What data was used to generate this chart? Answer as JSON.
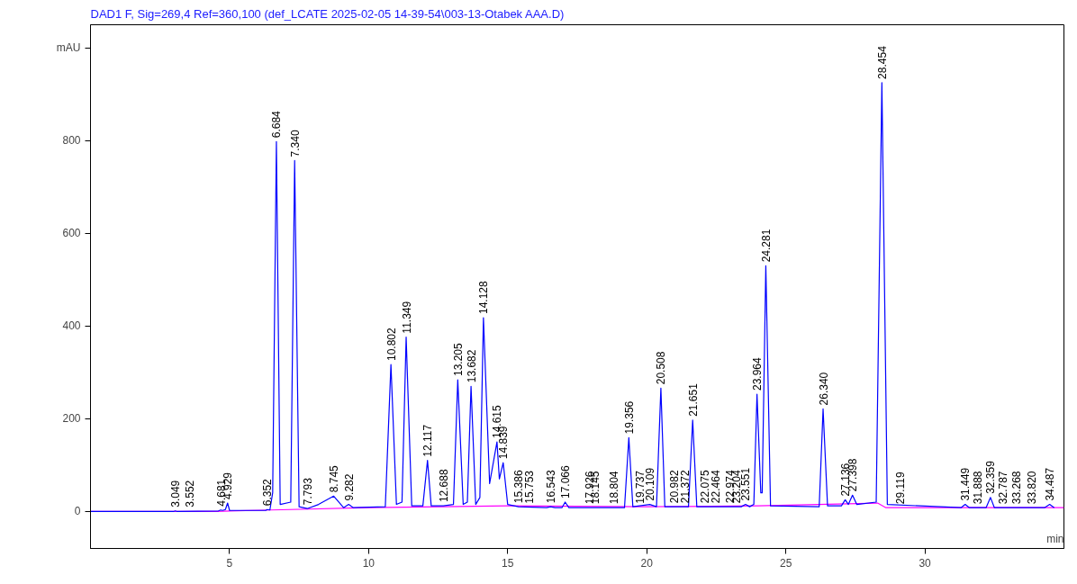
{
  "chart_data": {
    "type": "line",
    "title": "DAD1 F, Sig=269,4 Ref=360,100 (def_LCATE 2025-02-05 14-39-54\\003-13-Otabek AAA.D)",
    "xlabel": "min",
    "xlim": [
      0,
      35
    ],
    "ylim": [
      -80,
      1050
    ],
    "xticks": [
      5,
      10,
      15,
      20,
      25,
      30
    ],
    "yticks": [
      0,
      200,
      400,
      600,
      800,
      {
        "value": 1000,
        "label": "mAU"
      }
    ],
    "series": [
      {
        "color": "#0000ff",
        "x": [
          0,
          3.0,
          3.049,
          3.1,
          4.6,
          4.681,
          4.75,
          4.85,
          4.929,
          5.0,
          6.3,
          6.352,
          6.45,
          6.55,
          6.684,
          6.82,
          7.2,
          7.34,
          7.5,
          7.793,
          8.2,
          8.745,
          9.1,
          9.282,
          9.45,
          10.6,
          10.802,
          11.0,
          11.2,
          11.349,
          11.55,
          11.95,
          12.117,
          12.25,
          12.688,
          13.05,
          13.205,
          13.4,
          13.55,
          13.682,
          13.85,
          14.0,
          14.128,
          14.35,
          14.615,
          14.7,
          14.839,
          15.0,
          15.386,
          16.4,
          16.543,
          16.7,
          16.95,
          17.066,
          17.2,
          19.2,
          19.356,
          19.5,
          20.109,
          20.35,
          20.508,
          20.65,
          21.5,
          21.651,
          21.8,
          23.4,
          23.551,
          23.7,
          23.85,
          23.964,
          24.1,
          24.15,
          24.281,
          24.45,
          26.2,
          26.34,
          26.5,
          27.0,
          27.136,
          27.25,
          27.398,
          27.55,
          28.25,
          28.454,
          28.65,
          31.3,
          31.449,
          31.6,
          32.2,
          32.359,
          32.5,
          34.3,
          34.487,
          34.65
        ],
        "values": [
          0,
          0,
          1,
          0,
          1,
          3,
          2,
          4,
          18,
          2,
          2,
          4,
          3,
          40,
          798,
          15,
          20,
          757,
          10,
          6,
          15,
          33,
          8,
          15,
          8,
          10,
          317,
          15,
          20,
          376,
          12,
          12,
          110,
          12,
          12,
          15,
          284,
          15,
          20,
          270,
          15,
          30,
          418,
          60,
          150,
          70,
          105,
          15,
          10,
          8,
          10,
          8,
          8,
          20,
          8,
          8,
          159,
          10,
          15,
          10,
          266,
          10,
          10,
          197,
          10,
          10,
          15,
          10,
          15,
          253,
          40,
          40,
          530,
          12,
          10,
          221,
          12,
          12,
          25,
          15,
          35,
          15,
          20,
          925,
          15,
          8,
          15,
          8,
          8,
          30,
          8,
          8,
          15,
          8
        ]
      },
      {
        "color": "#ff00ff",
        "x": [
          0,
          4.5,
          6.5,
          10,
          15,
          20,
          24,
          28.3,
          28.6,
          35
        ],
        "values": [
          0,
          0,
          3,
          8,
          12,
          10,
          12,
          18,
          8,
          8
        ]
      }
    ],
    "annotations": [
      {
        "text": "3.049",
        "x": 3.049,
        "y": 1
      },
      {
        "text": "3.552",
        "x": 3.552,
        "y": 1
      },
      {
        "text": "4.681",
        "x": 4.681,
        "y": 3
      },
      {
        "text": "4.929",
        "x": 4.929,
        "y": 18
      },
      {
        "text": "6.352",
        "x": 6.352,
        "y": 4
      },
      {
        "text": "6.684",
        "x": 6.684,
        "y": 798
      },
      {
        "text": "7.340",
        "x": 7.34,
        "y": 757
      },
      {
        "text": "7.793",
        "x": 7.793,
        "y": 6
      },
      {
        "text": "8.745",
        "x": 8.745,
        "y": 33
      },
      {
        "text": "9.282",
        "x": 9.282,
        "y": 15
      },
      {
        "text": "10.802",
        "x": 10.802,
        "y": 317
      },
      {
        "text": "11.349",
        "x": 11.349,
        "y": 376
      },
      {
        "text": "12.117",
        "x": 12.117,
        "y": 110
      },
      {
        "text": "12.688",
        "x": 12.688,
        "y": 12
      },
      {
        "text": "13.205",
        "x": 13.205,
        "y": 284
      },
      {
        "text": "13.682",
        "x": 13.682,
        "y": 270
      },
      {
        "text": "14.128",
        "x": 14.128,
        "y": 418
      },
      {
        "text": "14.615",
        "x": 14.615,
        "y": 150
      },
      {
        "text": "14.839",
        "x": 14.839,
        "y": 105
      },
      {
        "text": "15.386",
        "x": 15.386,
        "y": 10
      },
      {
        "text": "15.753",
        "x": 15.753,
        "y": 9
      },
      {
        "text": "16.543",
        "x": 16.543,
        "y": 10
      },
      {
        "text": "17.066",
        "x": 17.066,
        "y": 20
      },
      {
        "text": "17.926",
        "x": 17.926,
        "y": 8
      },
      {
        "text": "18.145",
        "x": 18.145,
        "y": 8
      },
      {
        "text": "18.804",
        "x": 18.804,
        "y": 8
      },
      {
        "text": "19.356",
        "x": 19.356,
        "y": 159
      },
      {
        "text": "19.737",
        "x": 19.737,
        "y": 9
      },
      {
        "text": "20.109",
        "x": 20.109,
        "y": 15
      },
      {
        "text": "20.508",
        "x": 20.508,
        "y": 266
      },
      {
        "text": "20.982",
        "x": 20.982,
        "y": 10
      },
      {
        "text": "21.372",
        "x": 21.372,
        "y": 10
      },
      {
        "text": "21.651",
        "x": 21.651,
        "y": 197
      },
      {
        "text": "22.075",
        "x": 22.075,
        "y": 10
      },
      {
        "text": "22.464",
        "x": 22.464,
        "y": 10
      },
      {
        "text": "22.974",
        "x": 22.974,
        "y": 10
      },
      {
        "text": "23.204",
        "x": 23.204,
        "y": 10
      },
      {
        "text": "23.551",
        "x": 23.551,
        "y": 15
      },
      {
        "text": "23.964",
        "x": 23.964,
        "y": 253
      },
      {
        "text": "24.281",
        "x": 24.281,
        "y": 530
      },
      {
        "text": "26.340",
        "x": 26.34,
        "y": 221
      },
      {
        "text": "27.136",
        "x": 27.136,
        "y": 25
      },
      {
        "text": "27.398",
        "x": 27.398,
        "y": 35
      },
      {
        "text": "28.454",
        "x": 28.454,
        "y": 925
      },
      {
        "text": "29.119",
        "x": 29.119,
        "y": 8
      },
      {
        "text": "31.449",
        "x": 31.449,
        "y": 15
      },
      {
        "text": "31.888",
        "x": 31.888,
        "y": 8
      },
      {
        "text": "32.359",
        "x": 32.359,
        "y": 30
      },
      {
        "text": "32.787",
        "x": 32.787,
        "y": 8
      },
      {
        "text": "33.268",
        "x": 33.268,
        "y": 8
      },
      {
        "text": "33.820",
        "x": 33.82,
        "y": 8
      },
      {
        "text": "34.487",
        "x": 34.487,
        "y": 15
      }
    ]
  }
}
